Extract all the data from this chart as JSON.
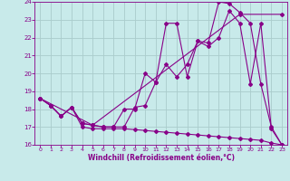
{
  "xlabel": "Windchill (Refroidissement éolien,°C)",
  "bg_color": "#c8eaea",
  "grid_color": "#aacccc",
  "line_color": "#880088",
  "xlim": [
    -0.5,
    23.5
  ],
  "ylim": [
    16,
    24
  ],
  "xticks": [
    0,
    1,
    2,
    3,
    4,
    5,
    6,
    7,
    8,
    9,
    10,
    11,
    12,
    13,
    14,
    15,
    16,
    17,
    18,
    19,
    20,
    21,
    22,
    23
  ],
  "yticks": [
    16,
    17,
    18,
    19,
    20,
    21,
    22,
    23,
    24
  ],
  "series1_x": [
    0,
    1,
    2,
    3,
    4,
    5,
    6,
    7,
    8,
    9,
    10,
    11,
    12,
    13,
    14,
    15,
    16,
    17,
    18,
    19,
    20,
    21,
    22,
    23
  ],
  "series1_y": [
    18.6,
    18.2,
    17.6,
    18.1,
    17.0,
    16.9,
    16.9,
    16.9,
    16.9,
    16.85,
    16.8,
    16.75,
    16.7,
    16.65,
    16.6,
    16.55,
    16.5,
    16.45,
    16.4,
    16.35,
    16.3,
    16.25,
    16.1,
    16.0
  ],
  "series2_x": [
    0,
    1,
    2,
    3,
    4,
    5,
    6,
    7,
    8,
    9,
    10,
    11,
    12,
    13,
    14,
    15,
    16,
    17,
    18,
    19,
    20,
    21,
    22,
    23
  ],
  "series2_y": [
    18.6,
    18.2,
    17.6,
    18.1,
    17.2,
    17.1,
    17.0,
    17.0,
    17.0,
    18.1,
    18.2,
    19.5,
    20.5,
    19.8,
    20.5,
    21.8,
    21.5,
    22.0,
    23.5,
    22.8,
    19.4,
    22.8,
    16.9,
    16.0
  ],
  "series3_x": [
    0,
    1,
    2,
    3,
    4,
    5,
    6,
    7,
    8,
    9,
    10,
    11,
    12,
    13,
    14,
    15,
    16,
    17,
    18,
    19,
    20,
    21,
    22,
    23
  ],
  "series3_y": [
    18.6,
    18.2,
    17.6,
    18.1,
    17.2,
    17.1,
    17.0,
    17.0,
    18.0,
    18.0,
    20.0,
    19.5,
    22.8,
    22.8,
    19.8,
    21.8,
    21.7,
    24.0,
    23.9,
    23.4,
    22.8,
    19.4,
    17.0,
    16.0
  ],
  "series4_x": [
    0,
    5,
    19,
    23
  ],
  "series4_y": [
    18.6,
    17.1,
    23.3,
    23.3
  ]
}
